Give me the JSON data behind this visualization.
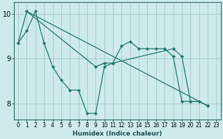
{
  "background_color": "#ceeaea",
  "grid_color": "#aacece",
  "line_color": "#1a7a6e",
  "marker_color": "#1a7a6e",
  "xlabel": "Humidex (Indice chaleur)",
  "xlim": [
    -0.5,
    23.5
  ],
  "ylim": [
    7.65,
    10.25
  ],
  "yticks": [
    8,
    9,
    10
  ],
  "xticks": [
    0,
    1,
    2,
    3,
    4,
    5,
    6,
    7,
    8,
    9,
    10,
    11,
    12,
    13,
    14,
    15,
    16,
    17,
    18,
    19,
    20,
    21,
    22,
    23
  ],
  "series": [
    {
      "points": [
        [
          0,
          9.35
        ],
        [
          1,
          9.62
        ],
        [
          2,
          10.05
        ],
        [
          3,
          9.35
        ],
        [
          4,
          8.82
        ],
        [
          5,
          8.52
        ],
        [
          6,
          8.3
        ],
        [
          7,
          8.3
        ],
        [
          8,
          7.78
        ],
        [
          9,
          7.78
        ],
        [
          10,
          8.82
        ],
        [
          11,
          8.9
        ],
        [
          12,
          9.28
        ],
        [
          13,
          9.38
        ],
        [
          14,
          9.22
        ],
        [
          15,
          9.22
        ],
        [
          16,
          9.22
        ],
        [
          17,
          9.22
        ],
        [
          18,
          9.05
        ],
        [
          19,
          8.05
        ],
        [
          20,
          8.05
        ],
        [
          21,
          8.05
        ],
        [
          22,
          7.95
        ]
      ]
    },
    {
      "points": [
        [
          1,
          10.05
        ],
        [
          22,
          7.95
        ]
      ]
    },
    {
      "points": [
        [
          0,
          9.35
        ],
        [
          1,
          10.05
        ],
        [
          9,
          8.82
        ],
        [
          10,
          8.9
        ],
        [
          11,
          8.9
        ],
        [
          18,
          9.22
        ],
        [
          19,
          9.05
        ],
        [
          20,
          8.05
        ],
        [
          21,
          8.05
        ],
        [
          22,
          7.95
        ]
      ]
    }
  ]
}
